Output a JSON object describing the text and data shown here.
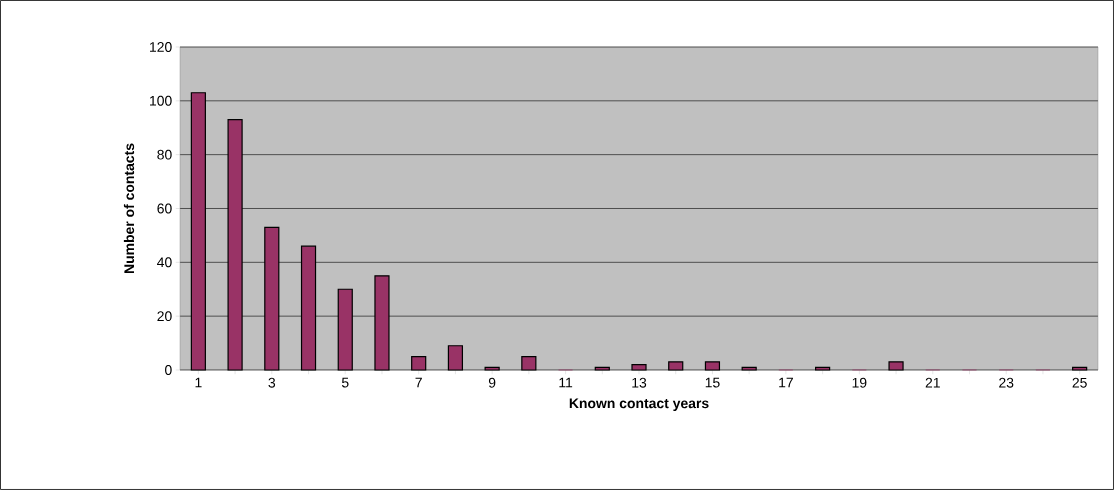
{
  "chart_data": {
    "type": "bar",
    "xlabel": "Known contact years",
    "ylabel": "Number of contacts",
    "categories": [
      "1",
      null,
      "3",
      null,
      "5",
      null,
      "7",
      null,
      "9",
      null,
      "11",
      null,
      "13",
      null,
      "15",
      null,
      "17",
      null,
      "19",
      null,
      "21",
      null,
      "23",
      null,
      "25"
    ],
    "values": [
      103,
      93,
      53,
      46,
      30,
      35,
      5,
      9,
      1,
      5,
      0,
      1,
      2,
      3,
      3,
      1,
      0,
      1,
      0,
      3,
      0,
      0,
      0,
      0,
      1
    ],
    "color": "#993366",
    "ylim": [
      0,
      120
    ],
    "yticks": [
      0,
      20,
      40,
      60,
      80,
      100,
      120
    ],
    "grid": "y"
  }
}
